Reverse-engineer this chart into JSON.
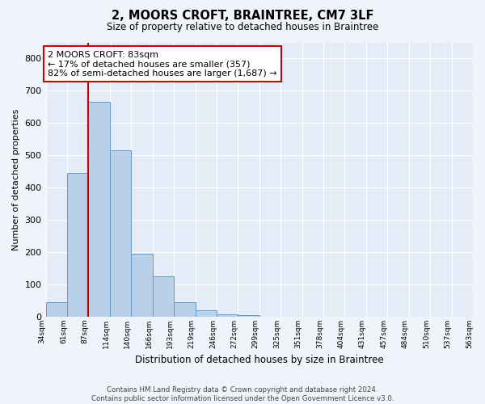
{
  "title": "2, MOORS CROFT, BRAINTREE, CM7 3LF",
  "subtitle": "Size of property relative to detached houses in Braintree",
  "xlabel": "Distribution of detached houses by size in Braintree",
  "ylabel": "Number of detached properties",
  "bin_labels": [
    "34sqm",
    "61sqm",
    "87sqm",
    "114sqm",
    "140sqm",
    "166sqm",
    "193sqm",
    "219sqm",
    "246sqm",
    "272sqm",
    "299sqm",
    "325sqm",
    "351sqm",
    "378sqm",
    "404sqm",
    "431sqm",
    "457sqm",
    "484sqm",
    "510sqm",
    "537sqm",
    "563sqm"
  ],
  "bar_values": [
    45,
    445,
    665,
    515,
    195,
    125,
    45,
    20,
    8,
    5,
    0,
    0,
    0,
    0,
    0,
    0,
    0,
    0,
    0,
    0
  ],
  "bar_color": "#b8d0e8",
  "bar_edge_color": "#6699cc",
  "property_line_x": 2,
  "property_line_color": "#cc0000",
  "annotation_text": "2 MOORS CROFT: 83sqm\n← 17% of detached houses are smaller (357)\n82% of semi-detached houses are larger (1,687) →",
  "annotation_box_color": "#cc0000",
  "annotation_box_fill": "#ffffff",
  "ylim": [
    0,
    850
  ],
  "yticks": [
    0,
    100,
    200,
    300,
    400,
    500,
    600,
    700,
    800
  ],
  "footer_line1": "Contains HM Land Registry data © Crown copyright and database right 2024.",
  "footer_line2": "Contains public sector information licensed under the Open Government Licence v3.0.",
  "bg_color": "#f0f4fa",
  "plot_bg_color": "#e4ecf7"
}
